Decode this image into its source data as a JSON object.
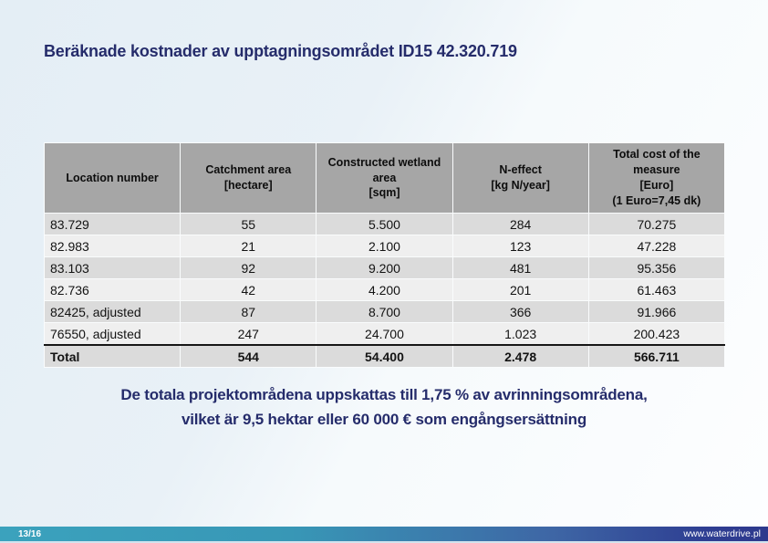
{
  "slide": {
    "title": "Beräknade kostnader av upptagningsområdet ID15 42.320.719",
    "summary": {
      "line1": "De totala projektområdena uppskattas till 1,75 % av avrinningsområdena,",
      "line2": "vilket är 9,5 hektar eller 60 000 € som engångsersättning"
    }
  },
  "table": {
    "headers": [
      "Location number",
      "Catchment area\n[hectare]",
      "Constructed wetland\narea\n[sqm]",
      "N-effect\n[kg N/year]",
      "Total cost of the\nmeasure\n[Euro]\n(1 Euro=7,45 dk)"
    ],
    "rows": [
      [
        "83.729",
        "55",
        "5.500",
        "284",
        "70.275"
      ],
      [
        "82.983",
        "21",
        "2.100",
        "123",
        "47.228"
      ],
      [
        "83.103",
        "92",
        "9.200",
        "481",
        "95.356"
      ],
      [
        "82.736",
        "42",
        "4.200",
        "201",
        "61.463"
      ],
      [
        "82425, adjusted",
        "87",
        "8.700",
        "366",
        "91.966"
      ],
      [
        "76550, adjusted",
        "247",
        "24.700",
        "1.023",
        "200.423"
      ]
    ],
    "total": [
      "Total",
      "544",
      "54.400",
      "2.478",
      "566.711"
    ]
  },
  "footer": {
    "page": "13/16",
    "website": "www.waterdrive.pl"
  },
  "colors": {
    "title_text": "#252c6b",
    "header_bg": "#a6a6a6",
    "row_dark": "#dbdbdb",
    "row_light": "#efefef",
    "total_border": "#161616",
    "footer_teal": "#3ba2bd",
    "footer_blue": "#2d398d",
    "background_tint": "#e4eef5"
  }
}
